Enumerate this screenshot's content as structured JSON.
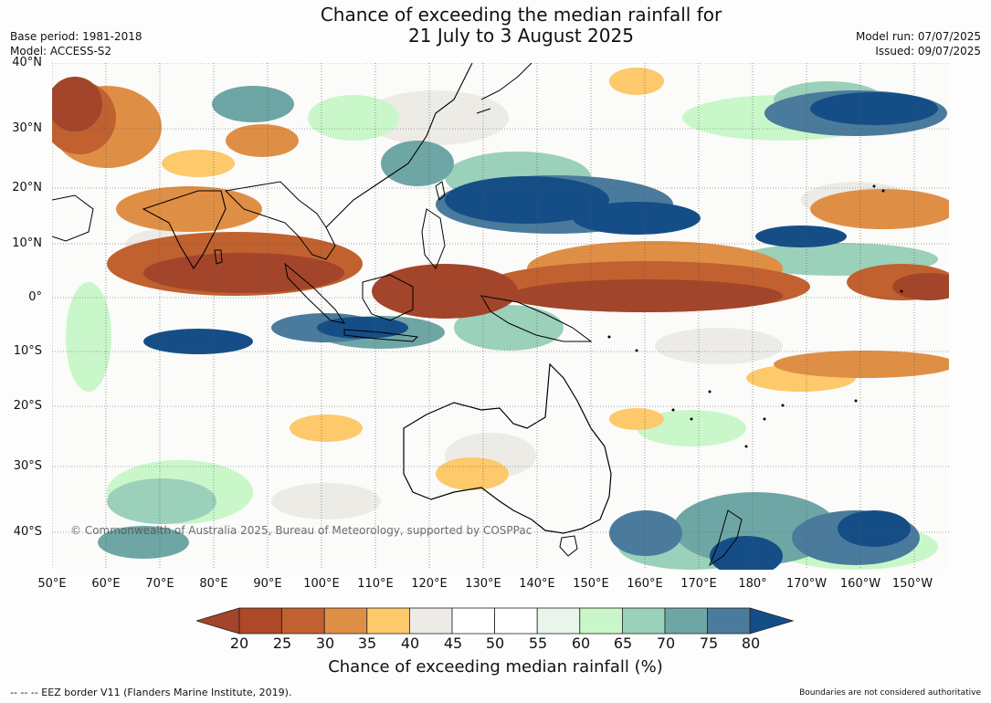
{
  "title": {
    "line1": "Chance of exceeding the median rainfall for",
    "line2": "21 July to 3 August 2025"
  },
  "meta": {
    "base_period": "Base period: 1981-2018",
    "model": "Model: ACCESS-S2",
    "model_run": "Model run: 07/07/2025",
    "issued": "Issued: 09/07/2025"
  },
  "axes": {
    "lat_labels": [
      "40°N",
      "30°N",
      "20°N",
      "10°N",
      "0°",
      "10°S",
      "20°S",
      "30°S",
      "40°S"
    ],
    "lon_labels": [
      "50°E",
      "60°E",
      "70°E",
      "80°E",
      "90°E",
      "100°E",
      "110°E",
      "120°E",
      "130°E",
      "140°E",
      "150°E",
      "160°E",
      "170°E",
      "180°",
      "170°W",
      "160°W",
      "150°W"
    ]
  },
  "colorbar": {
    "ticks": [
      "20",
      "25",
      "30",
      "35",
      "40",
      "45",
      "50",
      "55",
      "60",
      "65",
      "70",
      "75",
      "80"
    ],
    "colors": [
      "#a3452a",
      "#ad4829",
      "#c0612f",
      "#df8f45",
      "#fdc96a",
      "#ecebe6",
      "#ffffff",
      "#ffffff",
      "#e9f5ea",
      "#c9f7c9",
      "#9bd0bb",
      "#6ea6a5",
      "#4a7b9c",
      "#154e86"
    ],
    "label": "Chance of exceeding median rainfall (%)"
  },
  "footer": {
    "eez": "--  --  -- EEZ border V11 (Flanders Marine Institute, 2019).",
    "boundaries": "Boundaries are not considered authoritative",
    "copyright": "© Commonwealth of Australia 2025, Bureau of Meteorology, supported by COSPPac"
  }
}
